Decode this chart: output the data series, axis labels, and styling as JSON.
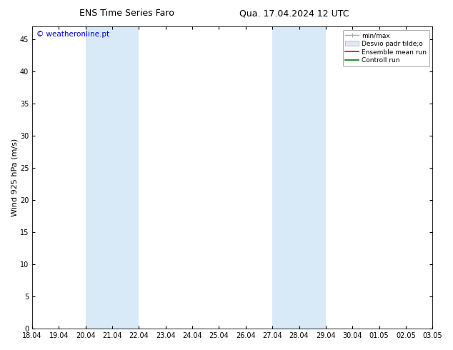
{
  "title_left": "ENS Time Series Faro",
  "title_right": "Qua. 17.04.2024 12 UTC",
  "ylabel": "Wind 925 hPa (m/s)",
  "watermark": "© weatheronline.pt",
  "x_tick_labels": [
    "18.04",
    "19.04",
    "20.04",
    "21.04",
    "22.04",
    "23.04",
    "24.04",
    "25.04",
    "26.04",
    "27.04",
    "28.04",
    "29.04",
    "30.04",
    "01.05",
    "02.05",
    "03.05"
  ],
  "x_tick_positions": [
    0,
    1,
    2,
    3,
    4,
    5,
    6,
    7,
    8,
    9,
    10,
    11,
    12,
    13,
    14,
    15
  ],
  "ylim": [
    0,
    47
  ],
  "yticks": [
    0,
    5,
    10,
    15,
    20,
    25,
    30,
    35,
    40,
    45
  ],
  "shaded_regions": [
    {
      "xmin": 2,
      "xmax": 4,
      "color": "#d8eaf8"
    },
    {
      "xmin": 9,
      "xmax": 11,
      "color": "#d8eaf8"
    }
  ],
  "legend_labels": [
    "min/max",
    "Desvio padr tilde;o",
    "Ensemble mean run",
    "Controll run"
  ],
  "legend_colors_line": [
    "#aaaaaa",
    "#ccddee",
    "red",
    "green"
  ],
  "background_color": "#ffffff",
  "plot_bg_color": "#ffffff",
  "title_fontsize": 9,
  "tick_fontsize": 7,
  "ylabel_fontsize": 8,
  "watermark_color": "#0000bb",
  "watermark_fontsize": 7.5
}
